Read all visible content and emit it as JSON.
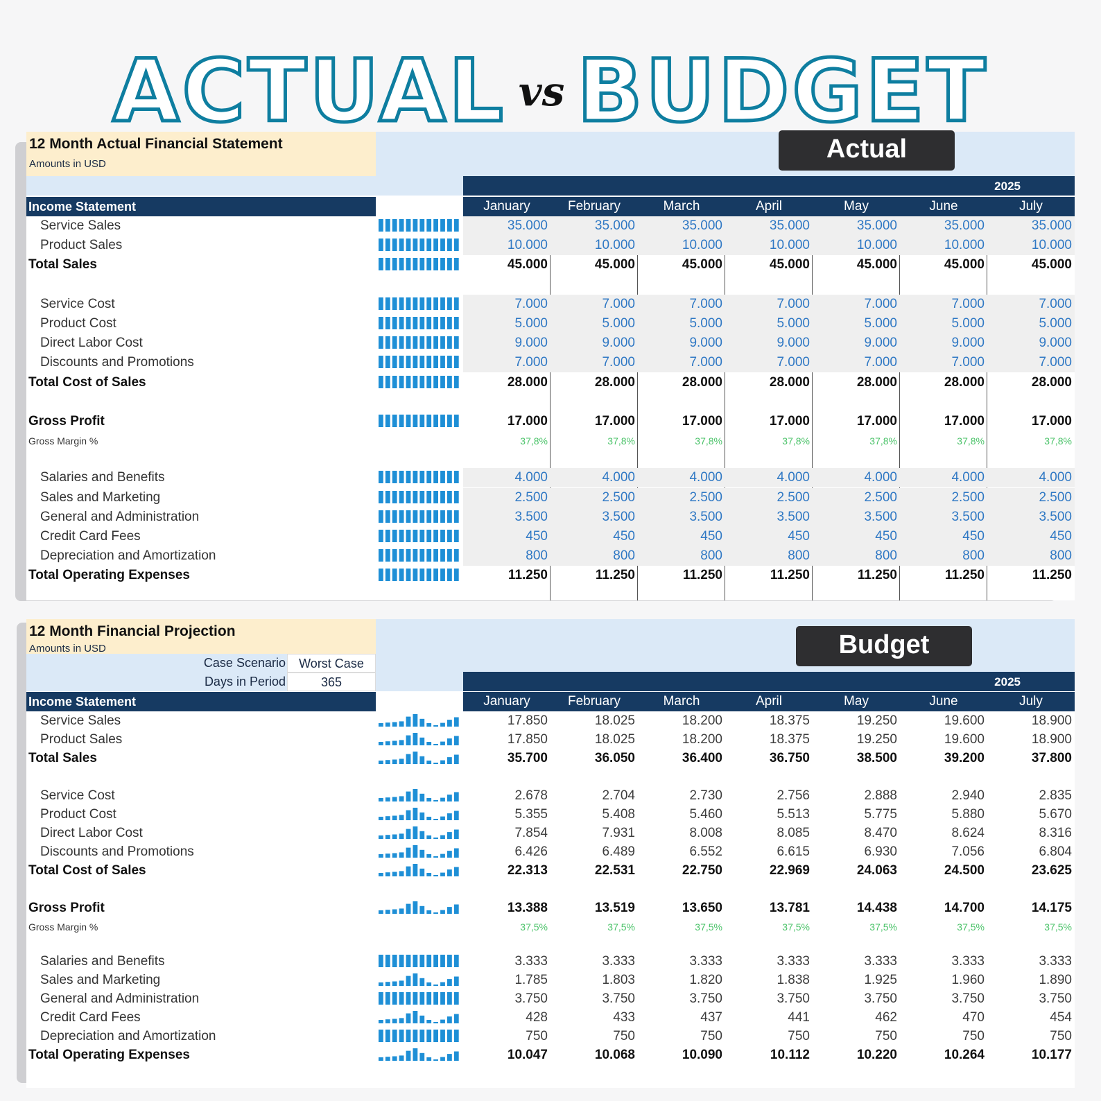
{
  "hero": {
    "left": "ACTUAL",
    "vs": "vs",
    "right": "BUDGET"
  },
  "actual": {
    "title": "12 Month Actual Financial Statement",
    "subtitle": "Amounts in USD",
    "tag": "Actual",
    "year": "2025",
    "section": "Income Statement",
    "months": [
      "January",
      "February",
      "March",
      "April",
      "May",
      "June",
      "July"
    ],
    "rows": [
      {
        "label": "Service Sales",
        "kind": "input",
        "values": [
          "35.000",
          "35.000",
          "35.000",
          "35.000",
          "35.000",
          "35.000",
          "35.000"
        ]
      },
      {
        "label": "Product Sales",
        "kind": "input",
        "values": [
          "10.000",
          "10.000",
          "10.000",
          "10.000",
          "10.000",
          "10.000",
          "10.000"
        ]
      },
      {
        "label": "Total Sales",
        "kind": "total",
        "values": [
          "45.000",
          "45.000",
          "45.000",
          "45.000",
          "45.000",
          "45.000",
          "45.000"
        ]
      },
      {
        "label": "",
        "kind": "blank",
        "values": []
      },
      {
        "label": "Service Cost",
        "kind": "input",
        "values": [
          "7.000",
          "7.000",
          "7.000",
          "7.000",
          "7.000",
          "7.000",
          "7.000"
        ]
      },
      {
        "label": "Product Cost",
        "kind": "input",
        "values": [
          "5.000",
          "5.000",
          "5.000",
          "5.000",
          "5.000",
          "5.000",
          "5.000"
        ]
      },
      {
        "label": "Direct Labor Cost",
        "kind": "input",
        "values": [
          "9.000",
          "9.000",
          "9.000",
          "9.000",
          "9.000",
          "9.000",
          "9.000"
        ]
      },
      {
        "label": "Discounts and Promotions",
        "kind": "input",
        "values": [
          "7.000",
          "7.000",
          "7.000",
          "7.000",
          "7.000",
          "7.000",
          "7.000"
        ]
      },
      {
        "label": "Total Cost of Sales",
        "kind": "total",
        "values": [
          "28.000",
          "28.000",
          "28.000",
          "28.000",
          "28.000",
          "28.000",
          "28.000"
        ]
      },
      {
        "label": "",
        "kind": "blank",
        "values": []
      },
      {
        "label": "Gross Profit",
        "kind": "total",
        "values": [
          "17.000",
          "17.000",
          "17.000",
          "17.000",
          "17.000",
          "17.000",
          "17.000"
        ]
      },
      {
        "label": "Gross Margin %",
        "kind": "margin",
        "values": [
          "37,8%",
          "37,8%",
          "37,8%",
          "37,8%",
          "37,8%",
          "37,8%",
          "37,8%"
        ]
      },
      {
        "label": "",
        "kind": "blank",
        "values": []
      },
      {
        "label": "Salaries and Benefits",
        "kind": "input",
        "values": [
          "4.000",
          "4.000",
          "4.000",
          "4.000",
          "4.000",
          "4.000",
          "4.000"
        ]
      },
      {
        "label": "Sales and Marketing",
        "kind": "input",
        "values": [
          "2.500",
          "2.500",
          "2.500",
          "2.500",
          "2.500",
          "2.500",
          "2.500"
        ]
      },
      {
        "label": "General and Administration",
        "kind": "input",
        "values": [
          "3.500",
          "3.500",
          "3.500",
          "3.500",
          "3.500",
          "3.500",
          "3.500"
        ]
      },
      {
        "label": "Credit Card Fees",
        "kind": "input",
        "values": [
          "450",
          "450",
          "450",
          "450",
          "450",
          "450",
          "450"
        ]
      },
      {
        "label": "Depreciation and Amortization",
        "kind": "input",
        "values": [
          "800",
          "800",
          "800",
          "800",
          "800",
          "800",
          "800"
        ]
      },
      {
        "label": "Total Operating Expenses",
        "kind": "total",
        "values": [
          "11.250",
          "11.250",
          "11.250",
          "11.250",
          "11.250",
          "11.250",
          "11.250"
        ]
      }
    ]
  },
  "budget": {
    "title": "12 Month Financial Projection",
    "subtitle": "Amounts in USD",
    "tag": "Budget",
    "year": "2025",
    "section": "Income Statement",
    "case_label": "Case Scenario",
    "case_value": "Worst Case",
    "days_label": "Days in Period",
    "days_value": "365",
    "months": [
      "January",
      "February",
      "March",
      "April",
      "May",
      "June",
      "July"
    ],
    "rows": [
      {
        "label": "Service Sales",
        "kind": "plain",
        "values": [
          "17.850",
          "18.025",
          "18.200",
          "18.375",
          "19.250",
          "19.600",
          "18.900"
        ]
      },
      {
        "label": "Product Sales",
        "kind": "plain",
        "values": [
          "17.850",
          "18.025",
          "18.200",
          "18.375",
          "19.250",
          "19.600",
          "18.900"
        ]
      },
      {
        "label": "Total Sales",
        "kind": "total",
        "values": [
          "35.700",
          "36.050",
          "36.400",
          "36.750",
          "38.500",
          "39.200",
          "37.800"
        ]
      },
      {
        "label": "",
        "kind": "blank",
        "values": []
      },
      {
        "label": "Service Cost",
        "kind": "plain",
        "values": [
          "2.678",
          "2.704",
          "2.730",
          "2.756",
          "2.888",
          "2.940",
          "2.835"
        ]
      },
      {
        "label": "Product Cost",
        "kind": "plain",
        "values": [
          "5.355",
          "5.408",
          "5.460",
          "5.513",
          "5.775",
          "5.880",
          "5.670"
        ]
      },
      {
        "label": "Direct Labor Cost",
        "kind": "plain",
        "values": [
          "7.854",
          "7.931",
          "8.008",
          "8.085",
          "8.470",
          "8.624",
          "8.316"
        ]
      },
      {
        "label": "Discounts and Promotions",
        "kind": "plain",
        "values": [
          "6.426",
          "6.489",
          "6.552",
          "6.615",
          "6.930",
          "7.056",
          "6.804"
        ]
      },
      {
        "label": "Total Cost of Sales",
        "kind": "total",
        "values": [
          "22.313",
          "22.531",
          "22.750",
          "22.969",
          "24.063",
          "24.500",
          "23.625"
        ]
      },
      {
        "label": "",
        "kind": "blank",
        "values": []
      },
      {
        "label": "Gross Profit",
        "kind": "total",
        "values": [
          "13.388",
          "13.519",
          "13.650",
          "13.781",
          "14.438",
          "14.700",
          "14.175"
        ]
      },
      {
        "label": "Gross Margin %",
        "kind": "margin",
        "values": [
          "37,5%",
          "37,5%",
          "37,5%",
          "37,5%",
          "37,5%",
          "37,5%",
          "37,5%"
        ]
      },
      {
        "label": "",
        "kind": "blank",
        "values": []
      },
      {
        "label": "Salaries and Benefits",
        "kind": "plain",
        "values": [
          "3.333",
          "3.333",
          "3.333",
          "3.333",
          "3.333",
          "3.333",
          "3.333"
        ]
      },
      {
        "label": "Sales and Marketing",
        "kind": "plain",
        "values": [
          "1.785",
          "1.803",
          "1.820",
          "1.838",
          "1.925",
          "1.960",
          "1.890"
        ]
      },
      {
        "label": "General and Administration",
        "kind": "plain",
        "values": [
          "3.750",
          "3.750",
          "3.750",
          "3.750",
          "3.750",
          "3.750",
          "3.750"
        ]
      },
      {
        "label": "Credit Card Fees",
        "kind": "plain",
        "values": [
          "428",
          "433",
          "437",
          "441",
          "462",
          "470",
          "454"
        ]
      },
      {
        "label": "Depreciation and Amortization",
        "kind": "plain",
        "values": [
          "750",
          "750",
          "750",
          "750",
          "750",
          "750",
          "750"
        ]
      },
      {
        "label": "Total Operating Expenses",
        "kind": "total",
        "values": [
          "10.047",
          "10.068",
          "10.090",
          "10.112",
          "10.220",
          "10.264",
          "10.177"
        ]
      }
    ]
  },
  "colors": {
    "navy": "#163a62",
    "teal": "#0e7ea0",
    "input_blue": "#2f78c4",
    "margin_green": "#4cc36a",
    "spark": "#1e8fd6"
  }
}
